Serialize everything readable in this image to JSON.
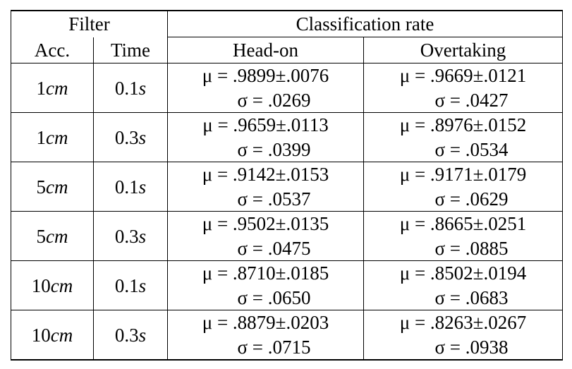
{
  "table": {
    "header": {
      "filter_group": "Filter",
      "rate_group": "Classification rate",
      "columns": [
        "Acc.",
        "Time",
        "Head-on",
        "Overtaking"
      ]
    },
    "rows": [
      {
        "acc_value": "1",
        "acc_unit": "cm",
        "time_value": "0.1",
        "time_unit": "s",
        "head_on": {
          "mu": "μ = .9899±.0076",
          "sigma": "σ = .0269"
        },
        "overtaking": {
          "mu": "μ = .9669±.0121",
          "sigma": "σ = .0427"
        }
      },
      {
        "acc_value": "1",
        "acc_unit": "cm",
        "time_value": "0.3",
        "time_unit": "s",
        "head_on": {
          "mu": "μ = .9659±.0113",
          "sigma": "σ = .0399"
        },
        "overtaking": {
          "mu": "μ = .8976±.0152",
          "sigma": "σ = .0534"
        }
      },
      {
        "acc_value": "5",
        "acc_unit": "cm",
        "time_value": "0.1",
        "time_unit": "s",
        "head_on": {
          "mu": "μ = .9142±.0153",
          "sigma": "σ = .0537"
        },
        "overtaking": {
          "mu": "μ = .9171±.0179",
          "sigma": "σ = .0629"
        }
      },
      {
        "acc_value": "5",
        "acc_unit": "cm",
        "time_value": "0.3",
        "time_unit": "s",
        "head_on": {
          "mu": "μ = .9502±.0135",
          "sigma": "σ = .0475"
        },
        "overtaking": {
          "mu": "μ = .8665±.0251",
          "sigma": "σ = .0885"
        }
      },
      {
        "acc_value": "10",
        "acc_unit": "cm",
        "time_value": "0.1",
        "time_unit": "s",
        "head_on": {
          "mu": "μ = .8710±.0185",
          "sigma": "σ = .0650"
        },
        "overtaking": {
          "mu": "μ = .8502±.0194",
          "sigma": "σ = .0683"
        }
      },
      {
        "acc_value": "10",
        "acc_unit": "cm",
        "time_value": "0.3",
        "time_unit": "s",
        "head_on": {
          "mu": "μ = .8879±.0203",
          "sigma": "σ = .0715"
        },
        "overtaking": {
          "mu": "μ = .8263±.0267",
          "sigma": "σ = .0938"
        }
      }
    ]
  }
}
